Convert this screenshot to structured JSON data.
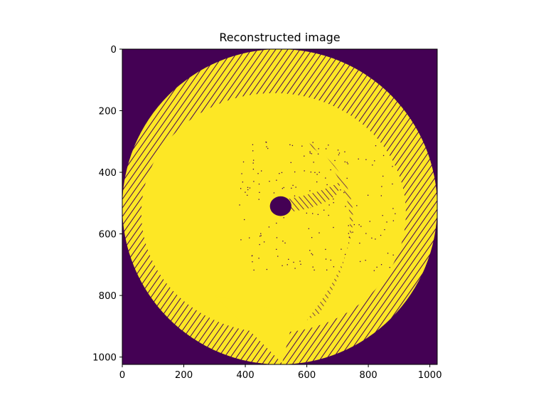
{
  "chart_data": {
    "type": "heatmap",
    "title": "Reconstructed image",
    "xlabel": "",
    "ylabel": "",
    "image_width": 1024,
    "image_height": 1024,
    "xlim": [
      0,
      1024
    ],
    "ylim": [
      1024,
      0
    ],
    "x_ticks": [
      0,
      200,
      400,
      600,
      800,
      1000
    ],
    "y_ticks": [
      0,
      200,
      400,
      600,
      800,
      1000
    ],
    "colormap": "viridis",
    "value_range": [
      0,
      1
    ],
    "low_color": "#440154",
    "high_color": "#fde725",
    "regions": {
      "disk_center": [
        512,
        512
      ],
      "disk_radius": 512,
      "dark_spot_center": [
        515,
        510
      ],
      "dark_spot_radius_x": 35,
      "dark_spot_radius_y": 32
    }
  }
}
